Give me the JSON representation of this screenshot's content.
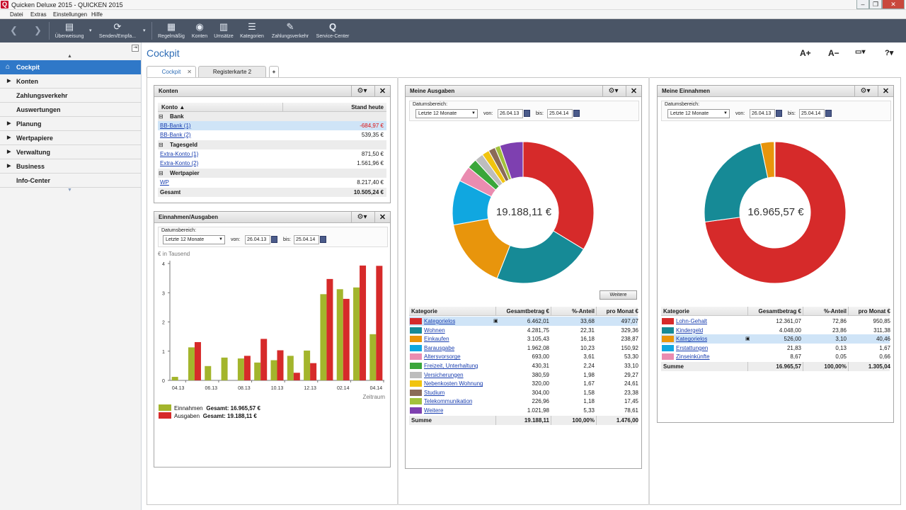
{
  "window": {
    "title": "Quicken Deluxe 2015 - QUICKEN 2015"
  },
  "menu": [
    "Datei",
    "Extras",
    "Einstellungen",
    "Hilfe"
  ],
  "toolbar": {
    "items": [
      {
        "label": "Überweisung",
        "icon": "transfer-icon"
      },
      {
        "label": "Senden/Empfa...",
        "icon": "sync-icon"
      },
      {
        "label": "Regelmäßig",
        "icon": "recurring-icon"
      },
      {
        "label": "Konten",
        "icon": "eye-icon"
      },
      {
        "label": "Umsätze",
        "icon": "receipt-icon"
      },
      {
        "label": "Kategorien",
        "icon": "stack-icon"
      },
      {
        "label": "Zahlungsverkehr",
        "icon": "payment-icon"
      },
      {
        "label": "Service-Center",
        "icon": "q-icon"
      }
    ]
  },
  "sidebar": {
    "items": [
      {
        "label": "Cockpit",
        "active": true
      },
      {
        "label": "Konten"
      },
      {
        "label": "Zahlungsverkehr"
      },
      {
        "label": "Auswertungen"
      },
      {
        "label": "Planung"
      },
      {
        "label": "Wertpapiere"
      },
      {
        "label": "Verwaltung"
      },
      {
        "label": "Business"
      },
      {
        "label": "Info-Center"
      }
    ]
  },
  "page": {
    "title": "Cockpit",
    "font_up": "A+",
    "font_down": "A−",
    "display_btn": "▭▾",
    "help_btn": "?▾",
    "tabs": [
      "Cockpit",
      "Registerkarte 2"
    ],
    "add_tab": "+"
  },
  "konten": {
    "title": "Konten",
    "col_account": "Konto ▲",
    "col_balance": "Stand heute",
    "groups": [
      {
        "name": "Bank",
        "accounts": [
          {
            "name": "BB-Bank (1)",
            "value": "-684,97 €",
            "negative": true
          },
          {
            "name": "BB-Bank (2)",
            "value": "539,35 €"
          }
        ]
      },
      {
        "name": "Tagesgeld",
        "accounts": [
          {
            "name": "Extra-Konto (1)",
            "value": "871,50 €"
          },
          {
            "name": "Extra-Konto (2)",
            "value": "1.561,96 €"
          }
        ]
      },
      {
        "name": "Wertpapier",
        "accounts": [
          {
            "name": "WP",
            "value": "8.217,40 €"
          }
        ]
      }
    ],
    "total_label": "Gesamt",
    "total_value": "10.505,24 €"
  },
  "date_filter": {
    "label": "Datumsbereich:",
    "range": "Letzte 12 Monate",
    "from_label": "von:",
    "from": "26.04.13",
    "to_label": "bis:",
    "to": "25.04.14"
  },
  "einausgaben": {
    "title": "Einnahmen/Ausgaben",
    "y_unit": "€ in Tausend",
    "x_title": "Zeitraum",
    "legend": [
      {
        "label": "Einnahmen",
        "total_label": "Gesamt: 16.965,57 €"
      },
      {
        "label": "Ausgaben",
        "total_label": "Gesamt: 19.188,11 €"
      }
    ]
  },
  "chart_data": [
    {
      "type": "bar",
      "title": "",
      "ylabel": "€ in Tausend",
      "xlabel": "Zeitraum",
      "ylim": [
        0,
        4
      ],
      "yticks": [
        0,
        1,
        2,
        3,
        4
      ],
      "x_tick_labels": [
        "04.13",
        "06.13",
        "08.13",
        "10.13",
        "12.13",
        "02.14",
        "04.14"
      ],
      "categories": [
        "04.13",
        "05.13",
        "06.13",
        "07.13",
        "08.13",
        "09.13",
        "10.13",
        "11.13",
        "12.13",
        "01.14",
        "02.14",
        "03.14",
        "04.14"
      ],
      "series": [
        {
          "name": "Einnahmen",
          "color": "#a3b52c",
          "values": [
            0.12,
            1.13,
            0.49,
            0.78,
            0.75,
            0.61,
            0.69,
            0.84,
            1.02,
            2.95,
            3.12,
            3.18,
            1.58
          ]
        },
        {
          "name": "Ausgaben",
          "color": "#d62a2a",
          "values": [
            0,
            1.31,
            0,
            0,
            0.84,
            1.42,
            1.03,
            0.26,
            0.59,
            3.47,
            2.79,
            3.93,
            3.92
          ]
        }
      ],
      "grid": false,
      "legend": "bottom-left"
    },
    {
      "type": "pie",
      "title": "Meine Ausgaben",
      "center_label": "19.188,11 €",
      "slices": [
        {
          "name": "Kategorielos",
          "value": 33.68,
          "color": "#d62a2a"
        },
        {
          "name": "Wohnen",
          "value": 22.31,
          "color": "#168a96"
        },
        {
          "name": "Einkaufen",
          "value": 16.18,
          "color": "#e8950c"
        },
        {
          "name": "Barausgabe",
          "value": 10.23,
          "color": "#10a7e0"
        },
        {
          "name": "Altersvorsorge",
          "value": 3.61,
          "color": "#ea8cb0"
        },
        {
          "name": "Freizeit, Unterhaltung",
          "value": 2.24,
          "color": "#3aa63a"
        },
        {
          "name": "Versicherungen",
          "value": 1.98,
          "color": "#bdbdbd"
        },
        {
          "name": "Nebenkosten Wohnung",
          "value": 1.67,
          "color": "#f1c40f"
        },
        {
          "name": "Studium",
          "value": 1.58,
          "color": "#8b6b58"
        },
        {
          "name": "Telekommunikation",
          "value": 1.18,
          "color": "#a3c13b"
        },
        {
          "name": "Weitere",
          "value": 5.33,
          "color": "#7e40b0"
        }
      ]
    },
    {
      "type": "pie",
      "title": "Meine Einnahmen",
      "center_label": "16.965,57 €",
      "slices": [
        {
          "name": "Lohn-Gehalt",
          "value": 72.86,
          "color": "#d62a2a"
        },
        {
          "name": "Kindergeld",
          "value": 23.86,
          "color": "#168a96"
        },
        {
          "name": "Kategorielos",
          "value": 3.1,
          "color": "#e8950c"
        },
        {
          "name": "Erstattungen",
          "value": 0.13,
          "color": "#10a7e0"
        },
        {
          "name": "Zinseinkünfte",
          "value": 0.05,
          "color": "#ea8cb0"
        }
      ]
    }
  ],
  "ausgaben": {
    "title": "Meine Ausgaben",
    "more_button": "Weitere",
    "headers": [
      "Kategorie",
      "Gesamtbetrag €",
      "%-Anteil",
      "pro Monat €"
    ],
    "rows": [
      {
        "name": "Kategorielos",
        "total": "6.462,01",
        "pct": "33,68",
        "month": "497,07",
        "color": "#d62a2a",
        "highlight": true
      },
      {
        "name": "Wohnen",
        "total": "4.281,75",
        "pct": "22,31",
        "month": "329,36",
        "color": "#168a96"
      },
      {
        "name": "Einkaufen",
        "total": "3.105,43",
        "pct": "16,18",
        "month": "238,87",
        "color": "#e8950c"
      },
      {
        "name": "Barausgabe",
        "total": "1.962,08",
        "pct": "10,23",
        "month": "150,92",
        "color": "#10a7e0"
      },
      {
        "name": "Altersvorsorge",
        "total": "693,00",
        "pct": "3,61",
        "month": "53,30",
        "color": "#ea8cb0"
      },
      {
        "name": "Freizeit, Unterhaltung",
        "total": "430,31",
        "pct": "2,24",
        "month": "33,10",
        "color": "#3aa63a"
      },
      {
        "name": "Versicherungen",
        "total": "380,59",
        "pct": "1,98",
        "month": "29,27",
        "color": "#bdbdbd"
      },
      {
        "name": "Nebenkosten Wohnung",
        "total": "320,00",
        "pct": "1,67",
        "month": "24,61",
        "color": "#f1c40f"
      },
      {
        "name": "Studium",
        "total": "304,00",
        "pct": "1,58",
        "month": "23,38",
        "color": "#8b6b58"
      },
      {
        "name": "Telekommunikation",
        "total": "226,96",
        "pct": "1,18",
        "month": "17,45",
        "color": "#a3c13b"
      },
      {
        "name": "Weitere",
        "total": "1.021,98",
        "pct": "5,33",
        "month": "78,61",
        "color": "#7e40b0"
      }
    ],
    "sum": {
      "label": "Summe",
      "total": "19.188,11",
      "pct": "100,00%",
      "month": "1.476,00"
    }
  },
  "einnahmen": {
    "title": "Meine Einnahmen",
    "headers": [
      "Kategorie",
      "Gesamtbetrag €",
      "%-Anteil",
      "pro Monat €"
    ],
    "rows": [
      {
        "name": "Lohn-Gehalt",
        "total": "12.361,07",
        "pct": "72,86",
        "month": "950,85",
        "color": "#d62a2a"
      },
      {
        "name": "Kindergeld",
        "total": "4.048,00",
        "pct": "23,86",
        "month": "311,38",
        "color": "#168a96"
      },
      {
        "name": "Kategorielos",
        "total": "526,00",
        "pct": "3,10",
        "month": "40,46",
        "color": "#e8950c",
        "highlight": true
      },
      {
        "name": "Erstattungen",
        "total": "21,83",
        "pct": "0,13",
        "month": "1,67",
        "color": "#10a7e0"
      },
      {
        "name": "Zinseinkünfte",
        "total": "8,67",
        "pct": "0,05",
        "month": "0,66",
        "color": "#ea8cb0"
      }
    ],
    "sum": {
      "label": "Summe",
      "total": "16.965,57",
      "pct": "100,00%",
      "month": "1.305,04"
    }
  }
}
